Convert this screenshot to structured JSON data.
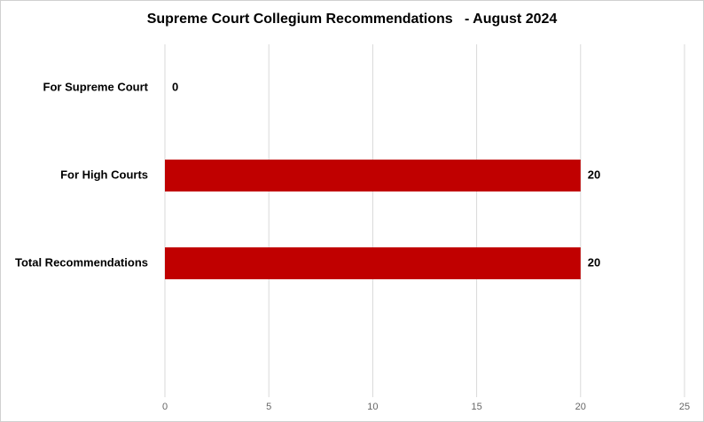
{
  "chart_data": {
    "type": "hbar",
    "title": "Supreme Court Collegium Recommendations   - August 2024",
    "categories": [
      "For Supreme Court",
      "For High Courts",
      "Total Recommendations"
    ],
    "values": [
      0,
      20,
      20
    ],
    "color": "#c00000",
    "xlim": [
      0,
      25
    ],
    "xticks": [
      0,
      5,
      10,
      15,
      20,
      25
    ],
    "grid": true
  }
}
